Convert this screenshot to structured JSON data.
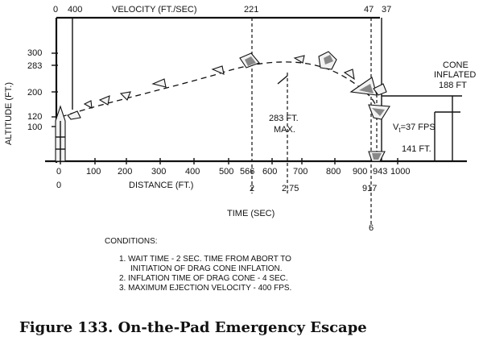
{
  "velocity": {
    "axis_label": "VELOCITY (FT./SEC)",
    "ticks": [
      "0",
      "400",
      "221",
      "47",
      "37"
    ]
  },
  "altitude": {
    "axis_label": "ALTITUDE (FT.)",
    "ticks": [
      "300",
      "283",
      "200",
      "120",
      "100"
    ]
  },
  "distance": {
    "axis_label": "DISTANCE (FT.)",
    "ticks": [
      "0",
      "100",
      "200",
      "300",
      "400",
      "500",
      "566",
      "600",
      "700",
      "800",
      "900",
      "943",
      "1000"
    ]
  },
  "time": {
    "axis_label": "TIME (SEC)",
    "ticks": [
      "0",
      "2",
      "2.75",
      "917",
      "6"
    ]
  },
  "annotations": {
    "max_line1": "283 FT.",
    "max_line2": "MAX.",
    "cone_line1": "CONE",
    "cone_line2": "INFLATED",
    "cone_line3": "188 FT",
    "vt_label": "V",
    "vt_sub": "t",
    "vt_value": "=37 FPS",
    "dist_141": "141 FT."
  },
  "conditions": {
    "title": "CONDITIONS:",
    "items": [
      "1.  WAIT TIME - 2 SEC.  TIME FROM ABORT TO",
      "INITIATION OF DRAG CONE INFLATION.",
      "2.  INFLATION TIME OF DRAG CONE - 4 SEC.",
      "3.  MAXIMUM EJECTION VELOCITY - 400 FPS."
    ]
  },
  "caption": "Figure 133.  On-the-Pad Emergency Escape"
}
